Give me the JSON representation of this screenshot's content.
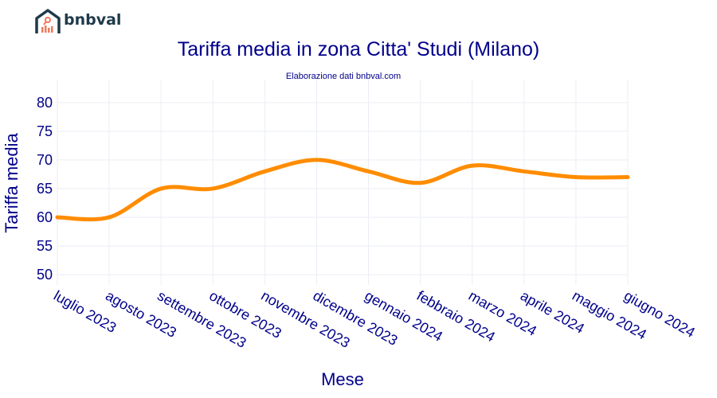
{
  "brand": {
    "name": "bnbval",
    "colors": {
      "house": "#1f3a4a",
      "accent": "#f07a5a"
    }
  },
  "chart_data": {
    "type": "line",
    "title": "Tariffa media in zona Citta' Studi (Milano)",
    "subtitle": "Elaborazione dati bnbval.com",
    "xlabel": "Mese",
    "ylabel": "Tariffa media",
    "categories": [
      "luglio 2023",
      "agosto 2023",
      "settembre 2023",
      "ottobre 2023",
      "novembre 2023",
      "dicembre 2023",
      "gennaio 2024",
      "febbraio 2024",
      "marzo 2024",
      "aprile 2024",
      "maggio 2024",
      "giugno 2024"
    ],
    "values": [
      60,
      60,
      65,
      65,
      68,
      70,
      68,
      66,
      69,
      68,
      67,
      67
    ],
    "yticks": [
      50,
      55,
      60,
      65,
      70,
      75,
      80
    ],
    "ylim": [
      48.2,
      84
    ],
    "grid": true,
    "line_shape": "spline",
    "colors": {
      "line": "#ff8c00",
      "text": "#00008b",
      "grid": "#ebeef5"
    }
  }
}
